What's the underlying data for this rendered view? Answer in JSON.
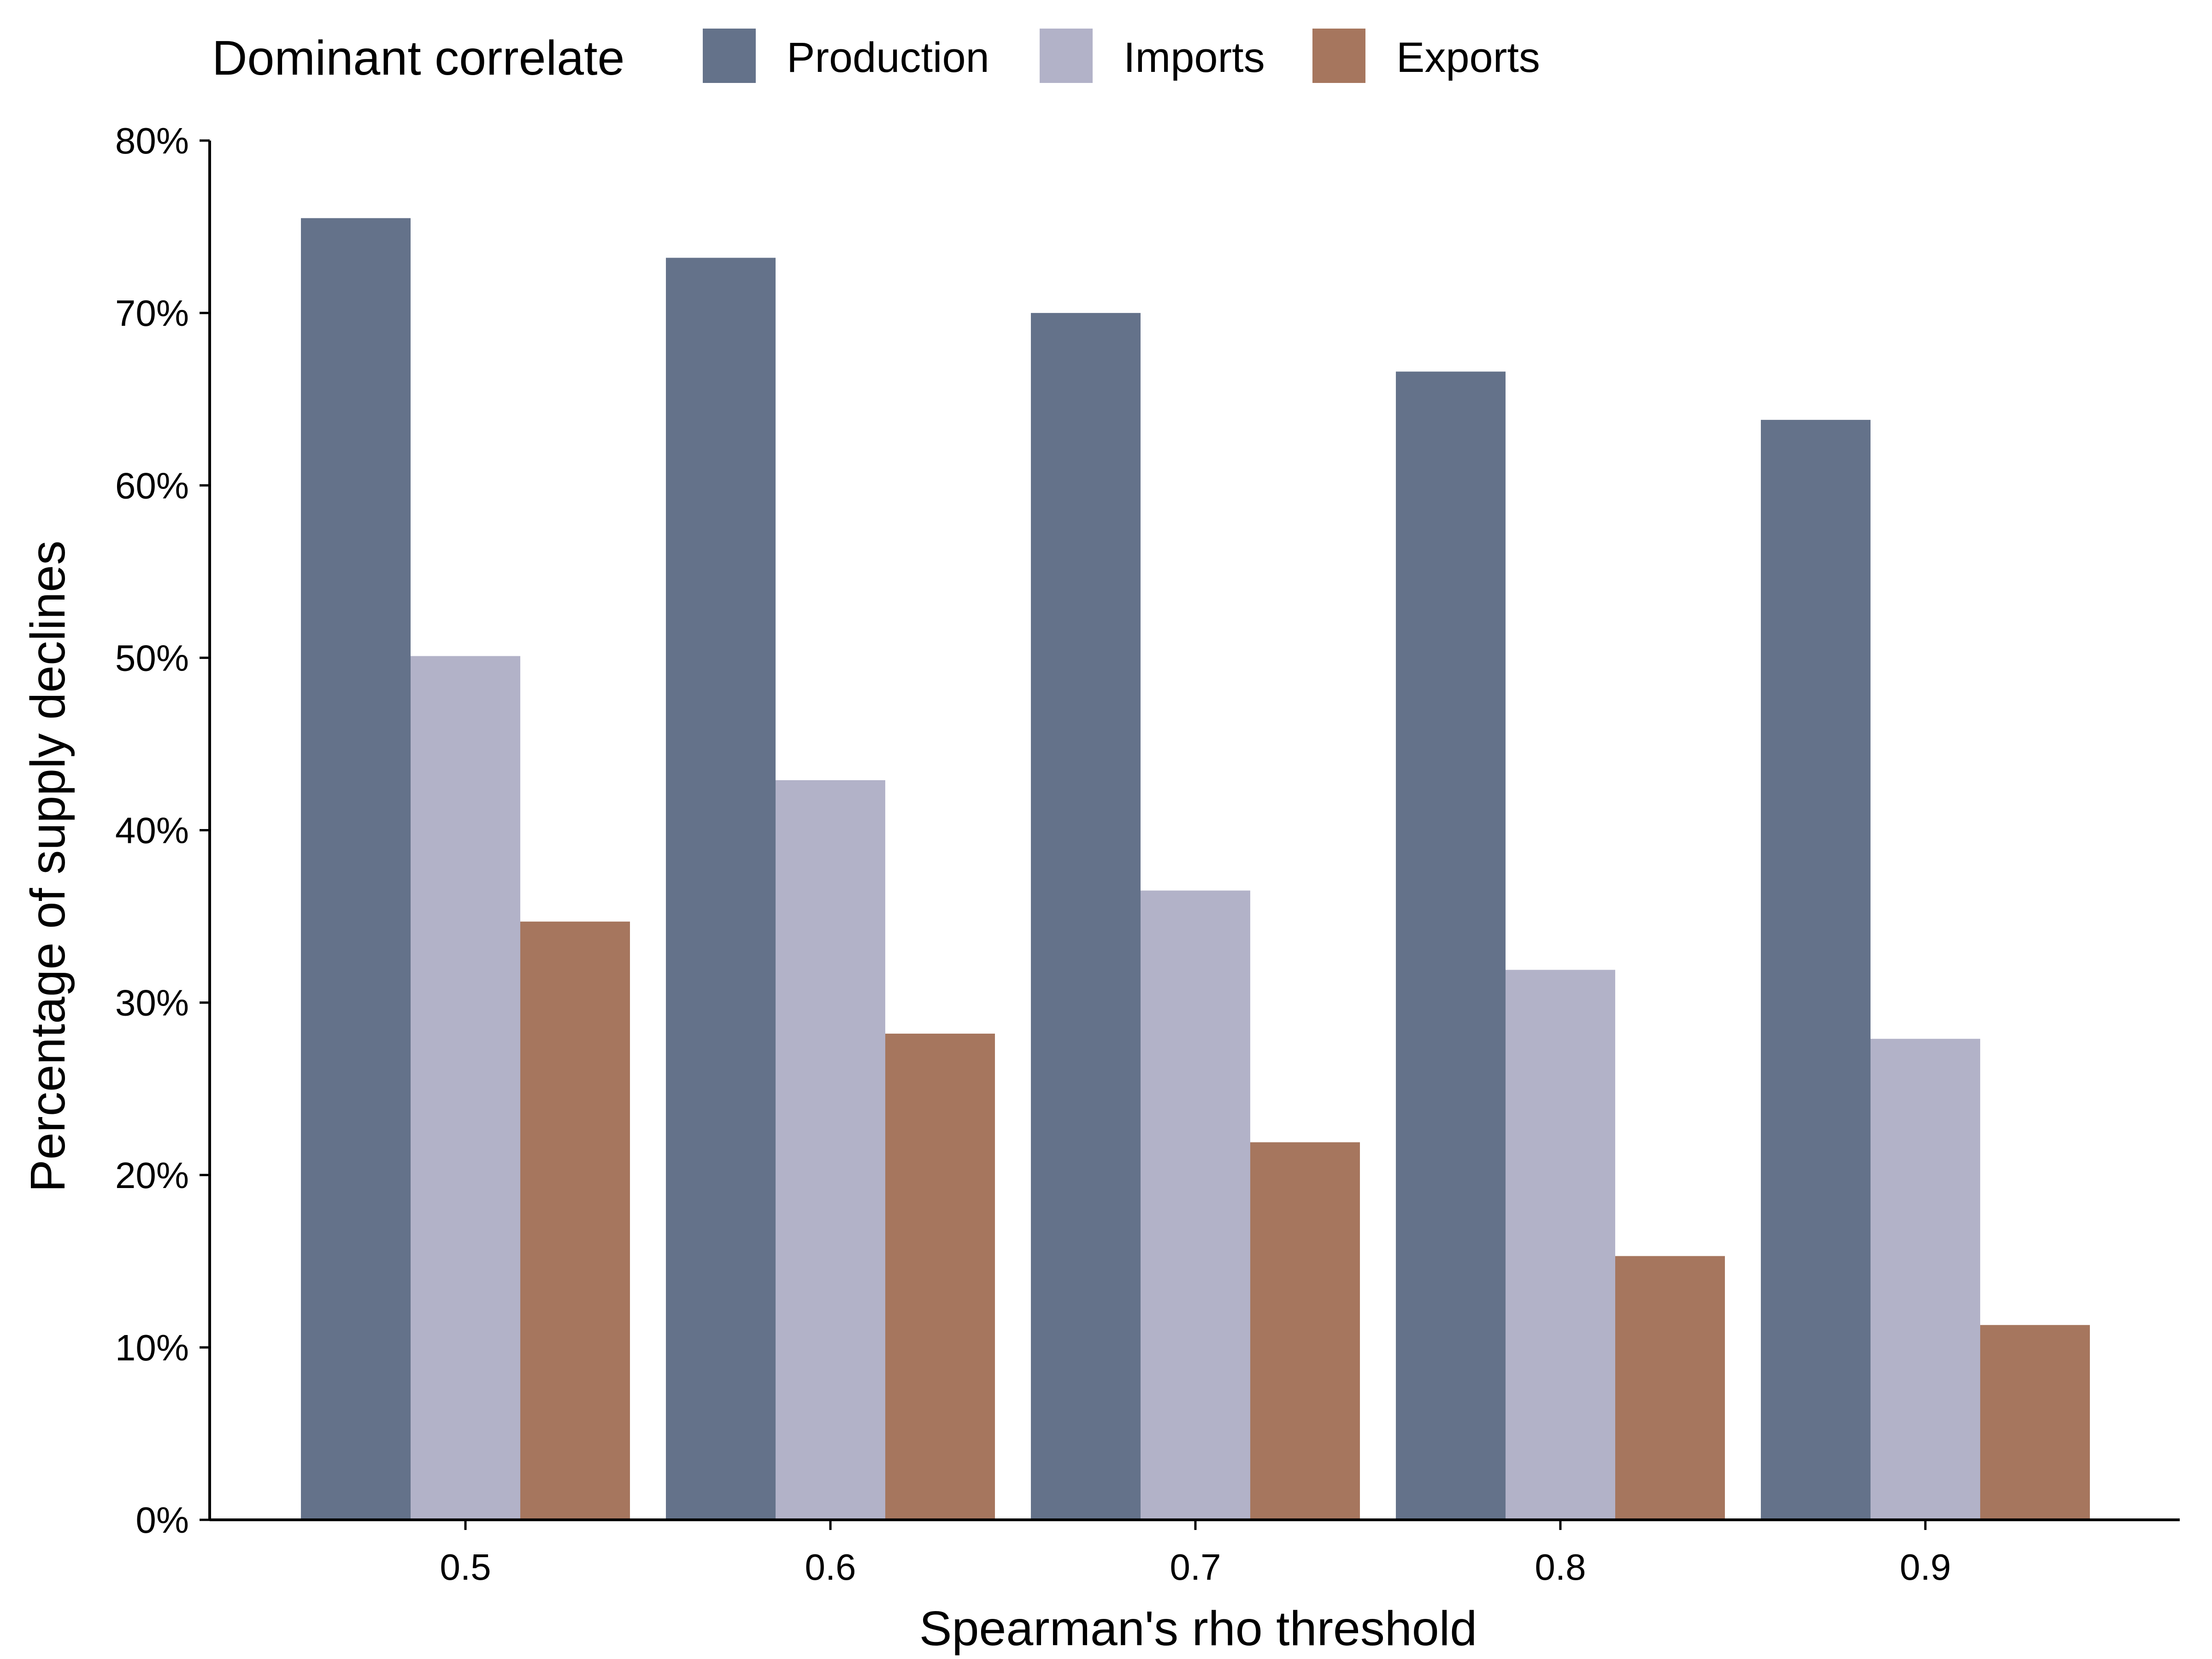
{
  "chart_data": {
    "type": "bar",
    "categories": [
      "0.5",
      "0.6",
      "0.7",
      "0.8",
      "0.9"
    ],
    "series": [
      {
        "name": "Production",
        "values": [
          75.5,
          73.2,
          70.0,
          66.6,
          63.8
        ],
        "color": "#64728a"
      },
      {
        "name": "Imports",
        "values": [
          50.1,
          42.9,
          36.5,
          31.9,
          27.9
        ],
        "color": "#b2b2c8"
      },
      {
        "name": "Exports",
        "values": [
          34.7,
          28.2,
          21.9,
          15.3,
          11.3
        ],
        "color": "#a6765e"
      }
    ],
    "title": "",
    "xlabel": "Spearman's rho threshold",
    "ylabel": "Percentage of supply declines",
    "ylim": [
      0,
      80
    ],
    "yticks": [
      0,
      10,
      20,
      30,
      40,
      50,
      60,
      70,
      80
    ],
    "ytick_labels": [
      "0%",
      "10%",
      "20%",
      "30%",
      "40%",
      "50%",
      "60%",
      "70%",
      "80%"
    ],
    "legend": {
      "title": "Dominant correlate",
      "position": "top"
    },
    "grid": false
  }
}
